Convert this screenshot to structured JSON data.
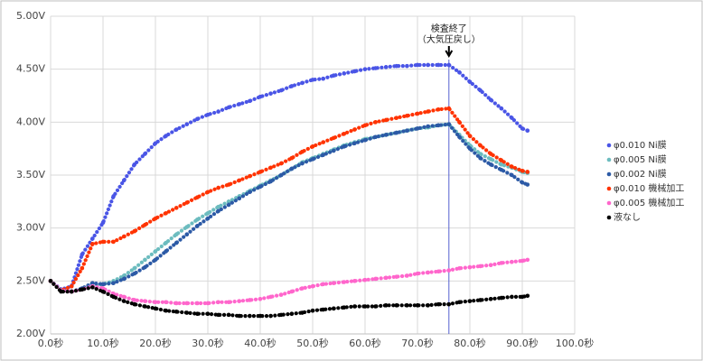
{
  "chart_data": {
    "type": "scatter",
    "x": [
      0,
      2,
      4,
      6,
      8,
      10,
      12,
      14,
      16,
      18,
      20,
      22,
      24,
      26,
      28,
      30,
      32,
      34,
      36,
      38,
      40,
      42,
      44,
      46,
      48,
      50,
      52,
      54,
      56,
      58,
      60,
      62,
      64,
      66,
      68,
      70,
      72,
      74,
      76,
      78,
      80,
      82,
      84,
      86,
      88,
      90,
      91
    ],
    "series": [
      {
        "name": "φ0.010 Ni膜",
        "color": "#4a55e6",
        "values": [
          2.5,
          2.42,
          2.45,
          2.75,
          2.9,
          3.05,
          3.3,
          3.45,
          3.6,
          3.7,
          3.8,
          3.87,
          3.93,
          3.98,
          4.03,
          4.07,
          4.1,
          4.14,
          4.17,
          4.2,
          4.24,
          4.27,
          4.3,
          4.34,
          4.37,
          4.4,
          4.41,
          4.44,
          4.46,
          4.48,
          4.5,
          4.51,
          4.52,
          4.53,
          4.53,
          4.54,
          4.54,
          4.54,
          4.54,
          4.47,
          4.38,
          4.3,
          4.21,
          4.13,
          4.04,
          3.94,
          3.92
        ]
      },
      {
        "name": "φ0.005 Ni膜",
        "color": "#6cbcbf",
        "values": [
          2.5,
          2.41,
          2.4,
          2.42,
          2.45,
          2.47,
          2.5,
          2.55,
          2.62,
          2.7,
          2.78,
          2.86,
          2.94,
          3.01,
          3.08,
          3.14,
          3.2,
          3.25,
          3.3,
          3.35,
          3.4,
          3.45,
          3.5,
          3.56,
          3.62,
          3.66,
          3.7,
          3.74,
          3.78,
          3.81,
          3.84,
          3.86,
          3.88,
          3.9,
          3.92,
          3.94,
          3.95,
          3.97,
          3.98,
          3.88,
          3.78,
          3.7,
          3.65,
          3.6,
          3.57,
          3.53,
          3.52
        ]
      },
      {
        "name": "φ0.002 Ni膜",
        "color": "#2c5aa6",
        "values": [
          2.5,
          2.41,
          2.4,
          2.43,
          2.48,
          2.47,
          2.48,
          2.52,
          2.57,
          2.63,
          2.7,
          2.78,
          2.86,
          2.94,
          3.02,
          3.09,
          3.16,
          3.22,
          3.28,
          3.34,
          3.39,
          3.44,
          3.5,
          3.56,
          3.61,
          3.65,
          3.69,
          3.73,
          3.77,
          3.8,
          3.83,
          3.86,
          3.88,
          3.9,
          3.92,
          3.94,
          3.96,
          3.97,
          3.98,
          3.86,
          3.75,
          3.66,
          3.6,
          3.55,
          3.5,
          3.43,
          3.41
        ]
      },
      {
        "name": "φ0.010 機械加工",
        "color": "#ff3300",
        "values": [
          2.5,
          2.41,
          2.45,
          2.62,
          2.85,
          2.87,
          2.87,
          2.92,
          2.97,
          3.03,
          3.09,
          3.14,
          3.19,
          3.24,
          3.29,
          3.34,
          3.38,
          3.41,
          3.45,
          3.49,
          3.53,
          3.57,
          3.61,
          3.66,
          3.72,
          3.77,
          3.81,
          3.85,
          3.89,
          3.93,
          3.97,
          4.0,
          4.02,
          4.04,
          4.06,
          4.08,
          4.1,
          4.12,
          4.13,
          4.0,
          3.87,
          3.78,
          3.7,
          3.64,
          3.58,
          3.54,
          3.53
        ]
      },
      {
        "name": "φ0.005 機械加工",
        "color": "#ff66cc",
        "values": [
          2.5,
          2.41,
          2.4,
          2.42,
          2.45,
          2.43,
          2.38,
          2.35,
          2.32,
          2.31,
          2.3,
          2.3,
          2.29,
          2.29,
          2.29,
          2.29,
          2.3,
          2.3,
          2.31,
          2.32,
          2.33,
          2.35,
          2.37,
          2.4,
          2.43,
          2.45,
          2.47,
          2.48,
          2.49,
          2.5,
          2.51,
          2.52,
          2.53,
          2.54,
          2.55,
          2.57,
          2.58,
          2.59,
          2.6,
          2.62,
          2.63,
          2.64,
          2.65,
          2.67,
          2.68,
          2.69,
          2.7
        ]
      },
      {
        "name": "液なし",
        "color": "#000000",
        "values": [
          2.5,
          2.4,
          2.4,
          2.42,
          2.44,
          2.4,
          2.35,
          2.31,
          2.28,
          2.26,
          2.24,
          2.22,
          2.21,
          2.2,
          2.19,
          2.19,
          2.18,
          2.18,
          2.17,
          2.17,
          2.17,
          2.17,
          2.18,
          2.19,
          2.2,
          2.22,
          2.23,
          2.24,
          2.25,
          2.26,
          2.26,
          2.26,
          2.27,
          2.27,
          2.27,
          2.27,
          2.27,
          2.28,
          2.28,
          2.3,
          2.31,
          2.32,
          2.33,
          2.34,
          2.35,
          2.35,
          2.36
        ]
      }
    ],
    "xlim": [
      0,
      100
    ],
    "xticks": [
      {
        "value": 0,
        "label": "0.0秒"
      },
      {
        "value": 10,
        "label": "10.0秒"
      },
      {
        "value": 20,
        "label": "20.0秒"
      },
      {
        "value": 30,
        "label": "30.0秒"
      },
      {
        "value": 40,
        "label": "40.0秒"
      },
      {
        "value": 50,
        "label": "50.0秒"
      },
      {
        "value": 60,
        "label": "60.0秒"
      },
      {
        "value": 70,
        "label": "70.0秒"
      },
      {
        "value": 80,
        "label": "80.0秒"
      },
      {
        "value": 90,
        "label": "90.0秒"
      },
      {
        "value": 100,
        "label": "100.0秒"
      }
    ],
    "ylim": [
      2,
      5
    ],
    "yticks": [
      {
        "value": 2,
        "label": "2.00V"
      },
      {
        "value": 2.5,
        "label": "2.50V"
      },
      {
        "value": 3,
        "label": "3.00V"
      },
      {
        "value": 3.5,
        "label": "3.50V"
      },
      {
        "value": 4,
        "label": "4.00V"
      },
      {
        "value": 4.5,
        "label": "4.50V"
      },
      {
        "value": 5,
        "label": "5.00V"
      }
    ],
    "grid": true,
    "legend": "right",
    "annotation": {
      "lines": [
        "検査終了",
        "（大気圧戻し）"
      ],
      "x": 76,
      "color": "#5560d0"
    }
  }
}
